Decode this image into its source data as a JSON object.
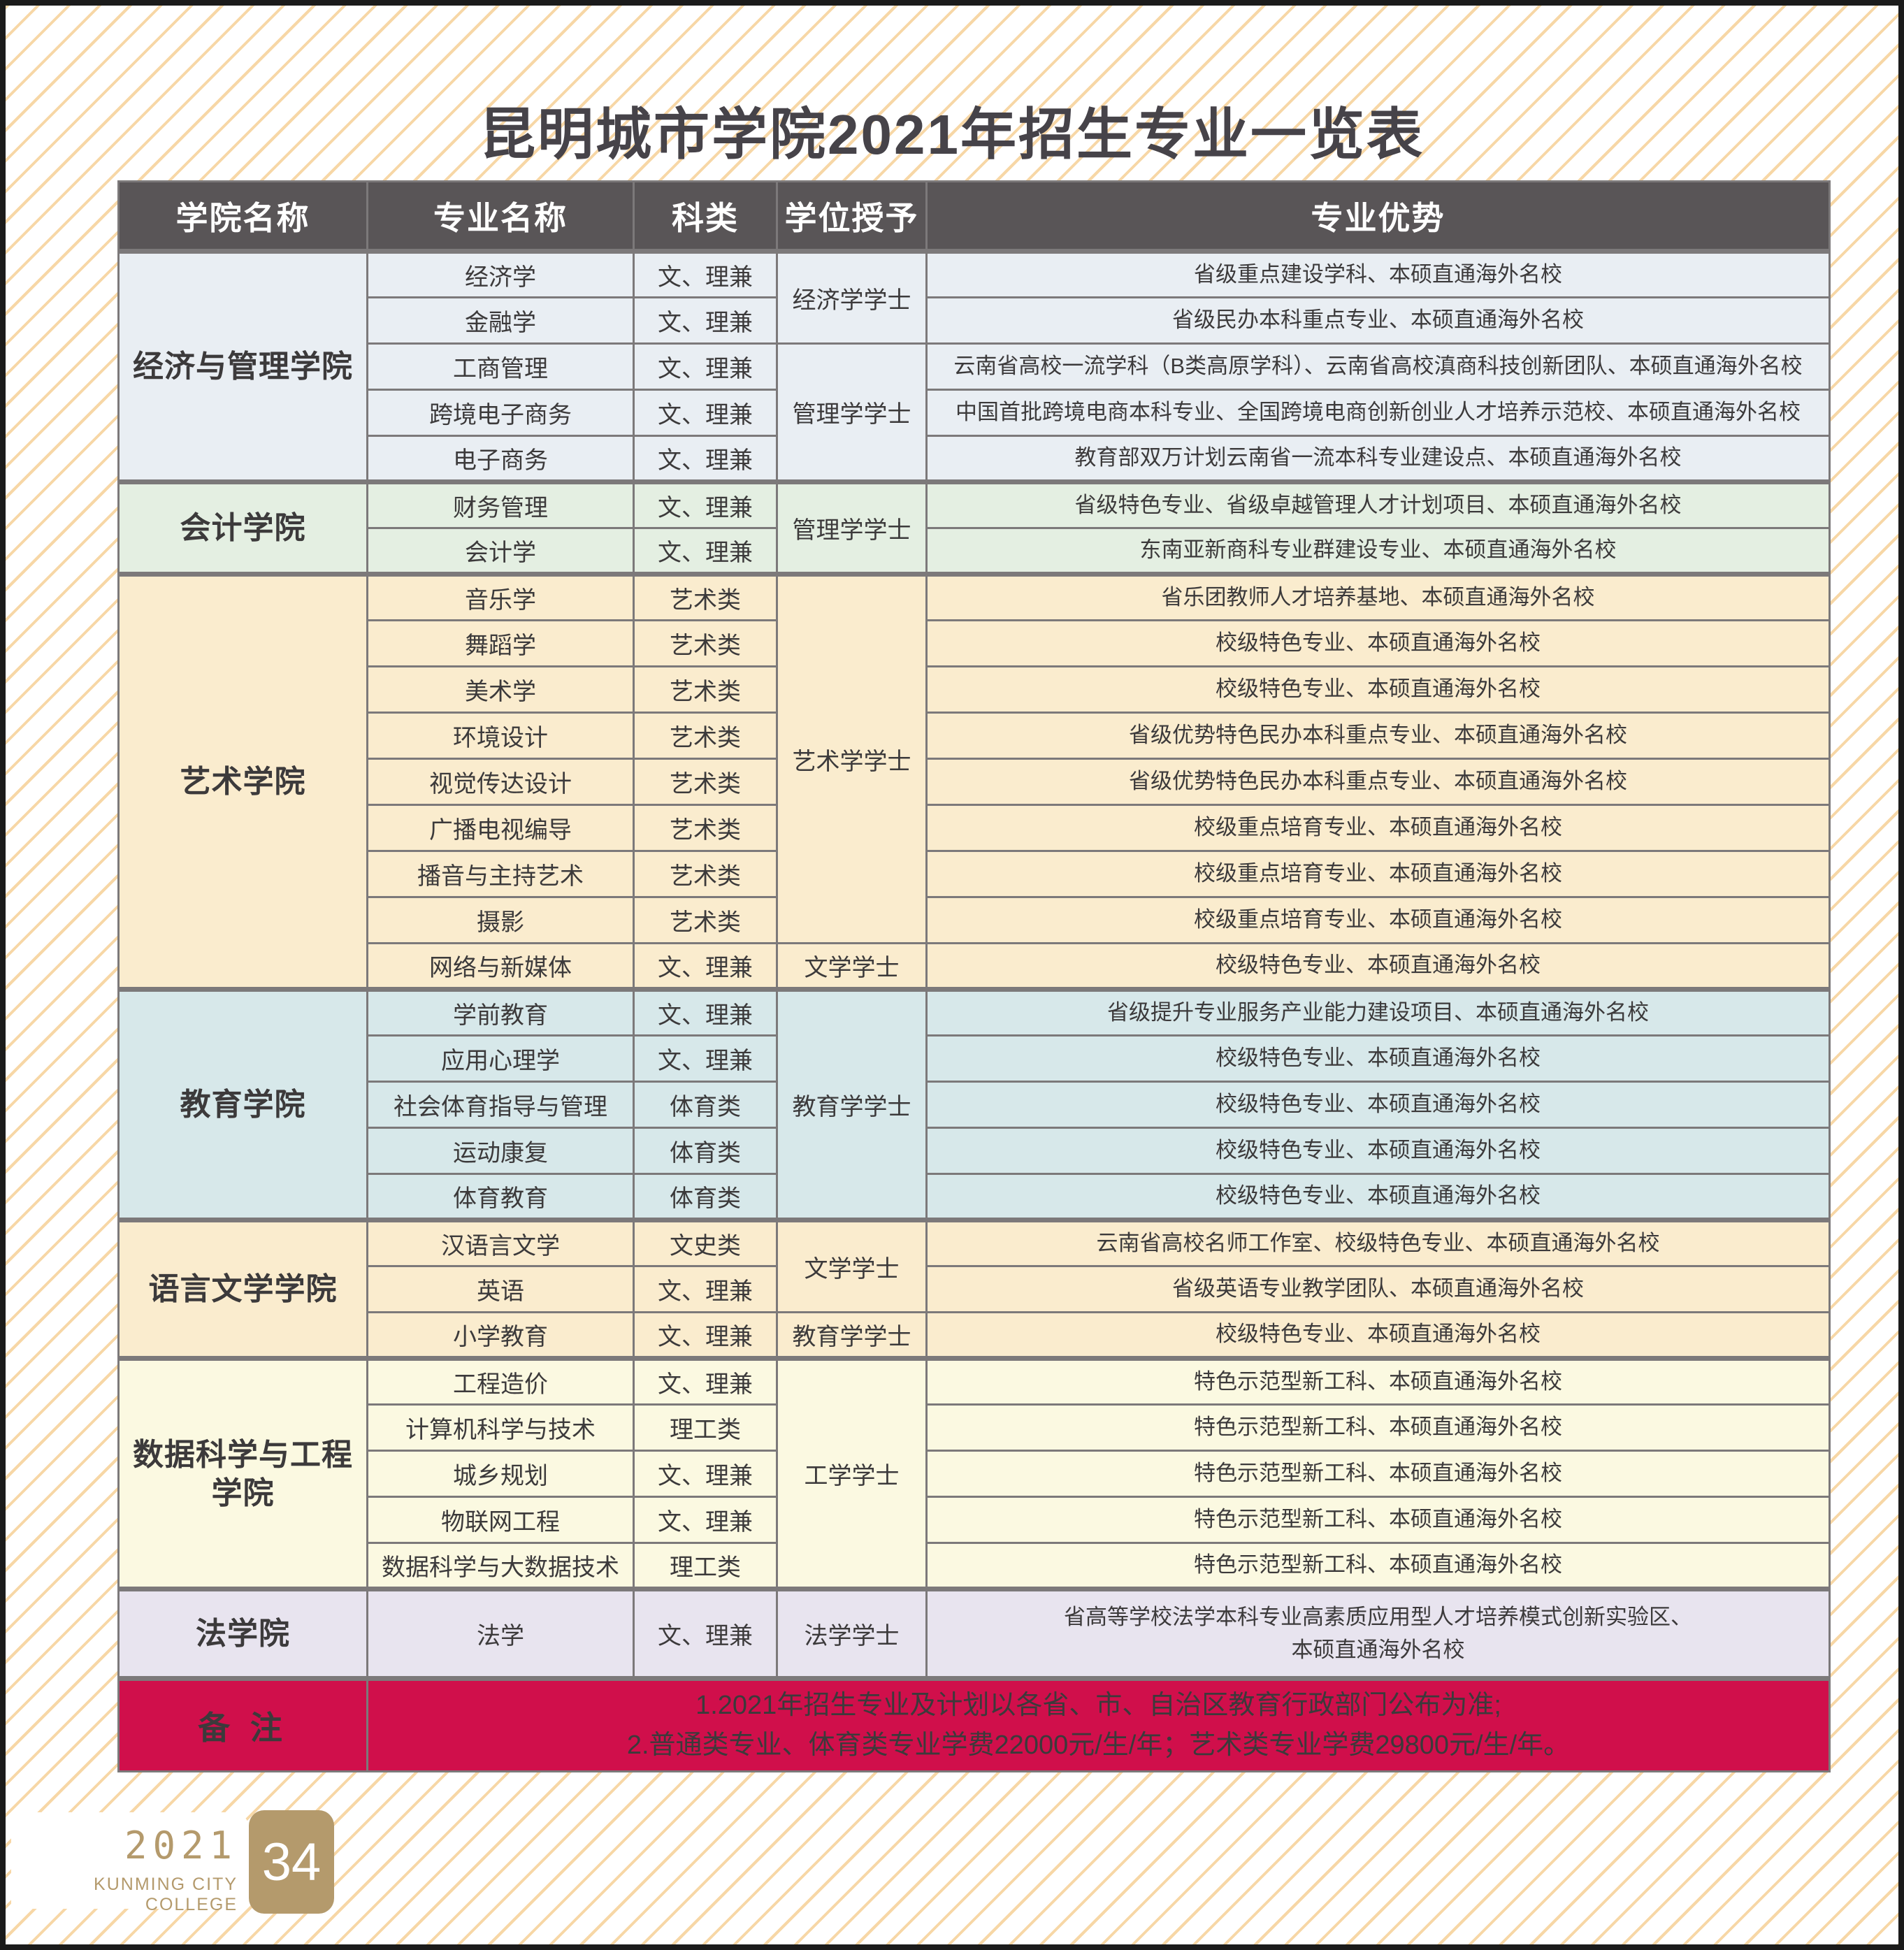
{
  "page": {
    "title": "昆明城市学院2021年招生专业一览表",
    "footer": {
      "year": "2021",
      "college_en": "KUNMING CITY COLLEGE",
      "page_number": "34"
    }
  },
  "colors": {
    "header_bg": "#595557",
    "cell_border": "#7c797a",
    "notes_bg": "#d00f4b",
    "accent_gold": "#b49a6c",
    "stripe_gold": "#f7d7a6",
    "title_color": "#464349"
  },
  "table": {
    "headers": [
      "学院名称",
      "专业名称",
      "科类",
      "学位授予",
      "专业优势"
    ],
    "sections": [
      {
        "college": "经济与管理学院",
        "bg": "#e9eef3",
        "degrees": [
          {
            "label": "经济学学士",
            "span": 2
          },
          {
            "label": "管理学学士",
            "span": 3
          }
        ],
        "rows": [
          {
            "major": "经济学",
            "category": "文、理兼",
            "advantage": "省级重点建设学科、本硕直通海外名校"
          },
          {
            "major": "金融学",
            "category": "文、理兼",
            "advantage": "省级民办本科重点专业、本硕直通海外名校"
          },
          {
            "major": "工商管理",
            "category": "文、理兼",
            "advantage": "云南省高校一流学科（B类高原学科）、云南省高校滇商科技创新团队、本硕直通海外名校"
          },
          {
            "major": "跨境电子商务",
            "category": "文、理兼",
            "advantage": "中国首批跨境电商本科专业、全国跨境电商创新创业人才培养示范校、本硕直通海外名校"
          },
          {
            "major": "电子商务",
            "category": "文、理兼",
            "advantage": "教育部双万计划云南省一流本科专业建设点、本硕直通海外名校"
          }
        ]
      },
      {
        "college": "会计学院",
        "bg": "#e4efe2",
        "degrees": [
          {
            "label": "管理学学士",
            "span": 2
          }
        ],
        "rows": [
          {
            "major": "财务管理",
            "category": "文、理兼",
            "advantage": "省级特色专业、省级卓越管理人才计划项目、本硕直通海外名校"
          },
          {
            "major": "会计学",
            "category": "文、理兼",
            "advantage": "东南亚新商科专业群建设专业、本硕直通海外名校"
          }
        ]
      },
      {
        "college": "艺术学院",
        "bg": "#faecce",
        "degrees": [
          {
            "label": "艺术学学士",
            "span": 8
          },
          {
            "label": "文学学士",
            "span": 1
          }
        ],
        "rows": [
          {
            "major": "音乐学",
            "category": "艺术类",
            "advantage": "省乐团教师人才培养基地、本硕直通海外名校"
          },
          {
            "major": "舞蹈学",
            "category": "艺术类",
            "advantage": "校级特色专业、本硕直通海外名校"
          },
          {
            "major": "美术学",
            "category": "艺术类",
            "advantage": "校级特色专业、本硕直通海外名校"
          },
          {
            "major": "环境设计",
            "category": "艺术类",
            "advantage": "省级优势特色民办本科重点专业、本硕直通海外名校"
          },
          {
            "major": "视觉传达设计",
            "category": "艺术类",
            "advantage": "省级优势特色民办本科重点专业、本硕直通海外名校"
          },
          {
            "major": "广播电视编导",
            "category": "艺术类",
            "advantage": "校级重点培育专业、本硕直通海外名校"
          },
          {
            "major": "播音与主持艺术",
            "category": "艺术类",
            "advantage": "校级重点培育专业、本硕直通海外名校"
          },
          {
            "major": "摄影",
            "category": "艺术类",
            "advantage": "校级重点培育专业、本硕直通海外名校"
          },
          {
            "major": "网络与新媒体",
            "category": "文、理兼",
            "advantage": "校级特色专业、本硕直通海外名校"
          }
        ]
      },
      {
        "college": "教育学院",
        "bg": "#d7e8ea",
        "degrees": [
          {
            "label": "教育学学士",
            "span": 5
          }
        ],
        "rows": [
          {
            "major": "学前教育",
            "category": "文、理兼",
            "advantage": "省级提升专业服务产业能力建设项目、本硕直通海外名校"
          },
          {
            "major": "应用心理学",
            "category": "文、理兼",
            "advantage": "校级特色专业、本硕直通海外名校"
          },
          {
            "major": "社会体育指导与管理",
            "category": "体育类",
            "advantage": "校级特色专业、本硕直通海外名校"
          },
          {
            "major": "运动康复",
            "category": "体育类",
            "advantage": "校级特色专业、本硕直通海外名校"
          },
          {
            "major": "体育教育",
            "category": "体育类",
            "advantage": "校级特色专业、本硕直通海外名校"
          }
        ]
      },
      {
        "college": "语言文学学院",
        "bg": "#faecce",
        "degrees": [
          {
            "label": "文学学士",
            "span": 2
          },
          {
            "label": "教育学学士",
            "span": 1
          }
        ],
        "rows": [
          {
            "major": "汉语言文学",
            "category": "文史类",
            "advantage": "云南省高校名师工作室、校级特色专业、本硕直通海外名校"
          },
          {
            "major": "英语",
            "category": "文、理兼",
            "advantage": "省级英语专业教学团队、本硕直通海外名校"
          },
          {
            "major": "小学教育",
            "category": "文、理兼",
            "advantage": "校级特色专业、本硕直通海外名校"
          }
        ]
      },
      {
        "college": "数据科学与工程\n学院",
        "bg": "#fbf9e1",
        "degrees": [
          {
            "label": "工学学士",
            "span": 5
          }
        ],
        "rows": [
          {
            "major": "工程造价",
            "category": "文、理兼",
            "advantage": "特色示范型新工科、本硕直通海外名校"
          },
          {
            "major": "计算机科学与技术",
            "category": "理工类",
            "advantage": "特色示范型新工科、本硕直通海外名校"
          },
          {
            "major": "城乡规划",
            "category": "文、理兼",
            "advantage": "特色示范型新工科、本硕直通海外名校"
          },
          {
            "major": "物联网工程",
            "category": "文、理兼",
            "advantage": "特色示范型新工科、本硕直通海外名校"
          },
          {
            "major": "数据科学与大数据技术",
            "category": "理工类",
            "advantage": "特色示范型新工科、本硕直通海外名校"
          }
        ]
      },
      {
        "college": "法学院",
        "bg": "#e8e4ef",
        "tall": true,
        "degrees": [
          {
            "label": "法学学士",
            "span": 1
          }
        ],
        "rows": [
          {
            "major": "法学",
            "category": "文、理兼",
            "advantage": "省高等学校法学本科专业高素质应用型人才培养模式创新实验区、\n本硕直通海外名校"
          }
        ]
      }
    ],
    "notes": {
      "label": "备 注",
      "lines": [
        "1.2021年招生专业及计划以各省、市、自治区教育行政部门公布为准;",
        "2.普通类专业、体育类专业学费22000元/生/年；艺术类专业学费29800元/生/年。"
      ]
    }
  }
}
